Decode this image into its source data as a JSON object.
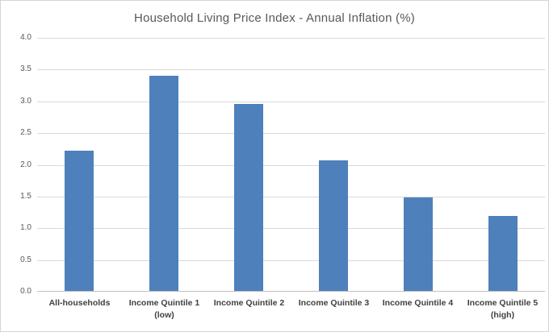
{
  "chart_data": {
    "type": "bar",
    "title": "Household Living Price Index - Annual Inflation (%)",
    "categories": [
      "All-households",
      "Income Quintile 1\n(low)",
      "Income Quintile 2",
      "Income Quintile 3",
      "Income Quintile 4",
      "Income Quintile 5\n(high)"
    ],
    "values": [
      2.21,
      3.39,
      2.95,
      2.06,
      1.47,
      1.18
    ],
    "xlabel": "",
    "ylabel": "",
    "ylim": [
      0,
      4.0
    ],
    "ytick_step": 0.5,
    "ytick_decimals": 1,
    "grid": true,
    "legend": false,
    "colors": {
      "bar": "#4e80bc",
      "gridline": "#d9d9d9",
      "axis_line": "#bfbfbf",
      "title": "#595959",
      "tick_label": "#595959",
      "category_label": "#404040",
      "background": "#ffffff",
      "border": "#d4d4d4"
    }
  }
}
